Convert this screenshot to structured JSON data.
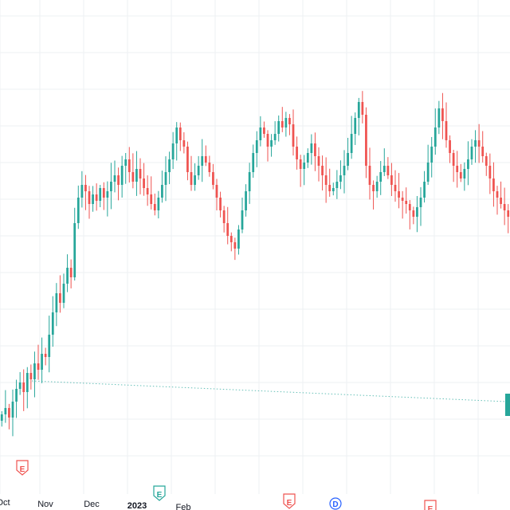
{
  "header": {
    "partial_text": ""
  },
  "colors": {
    "up": "#26a69a",
    "down": "#ef5350",
    "grid": "#eef0f3",
    "baseline": "#26a69a",
    "event_earnings": "#ef5350",
    "event_dividend": "#2962ff",
    "event_earnings_green": "#26a69a"
  },
  "x_axis": {
    "labels": [
      {
        "text": "Oct",
        "bold": false
      },
      {
        "text": "Nov",
        "bold": false
      },
      {
        "text": "Dec",
        "bold": false
      },
      {
        "text": "2023",
        "bold": true
      },
      {
        "text": "Feb",
        "bold": false
      }
    ]
  },
  "events": [
    {
      "type": "E",
      "color": "red",
      "icon": "earnings-icon"
    },
    {
      "type": "E",
      "color": "green",
      "icon": "earnings-icon"
    },
    {
      "type": "E",
      "color": "red",
      "icon": "earnings-icon"
    },
    {
      "type": "D",
      "color": "blue",
      "icon": "dividend-icon"
    },
    {
      "type": "E",
      "color": "red",
      "icon": "earnings-icon"
    }
  ],
  "chart_data": {
    "type": "candlestick",
    "series": [
      {
        "name": "",
        "closes": [
          20,
          22,
          19,
          24,
          28,
          30,
          27,
          33,
          31,
          36,
          34,
          39,
          38,
          45,
          52,
          58,
          55,
          61,
          66,
          63,
          80,
          88,
          92,
          90,
          86,
          89,
          87,
          91,
          88,
          90,
          93,
          95,
          92,
          98,
          100,
          96,
          93,
          97,
          94,
          91,
          89,
          86,
          84,
          88,
          92,
          96,
          100,
          105,
          110,
          106,
          104,
          96,
          92,
          95,
          98,
          101,
          99,
          96,
          92,
          88,
          84,
          80,
          76,
          74,
          72,
          78,
          84,
          90,
          96,
          102,
          106,
          110,
          108,
          104,
          106,
          108,
          112,
          110,
          113,
          111,
          104,
          100,
          97,
          99,
          102,
          105,
          101,
          98,
          95,
          92,
          90,
          91,
          93,
          95,
          98,
          102,
          108,
          113,
          118,
          114,
          98,
          92,
          90,
          93,
          96,
          98,
          95,
          92,
          90,
          88,
          87,
          86,
          84,
          82,
          85,
          88,
          93,
          99,
          104,
          110,
          116,
          112,
          106,
          102,
          98,
          96,
          94,
          97,
          100,
          104,
          106,
          104,
          101,
          98,
          94,
          90,
          88,
          86,
          84,
          82
        ]
      }
    ],
    "x_categories": [
      "Oct",
      "Nov",
      "Dec",
      "2023",
      "Feb"
    ],
    "y_range": [
      0,
      140
    ],
    "baseline_value": 30,
    "grid": true
  }
}
